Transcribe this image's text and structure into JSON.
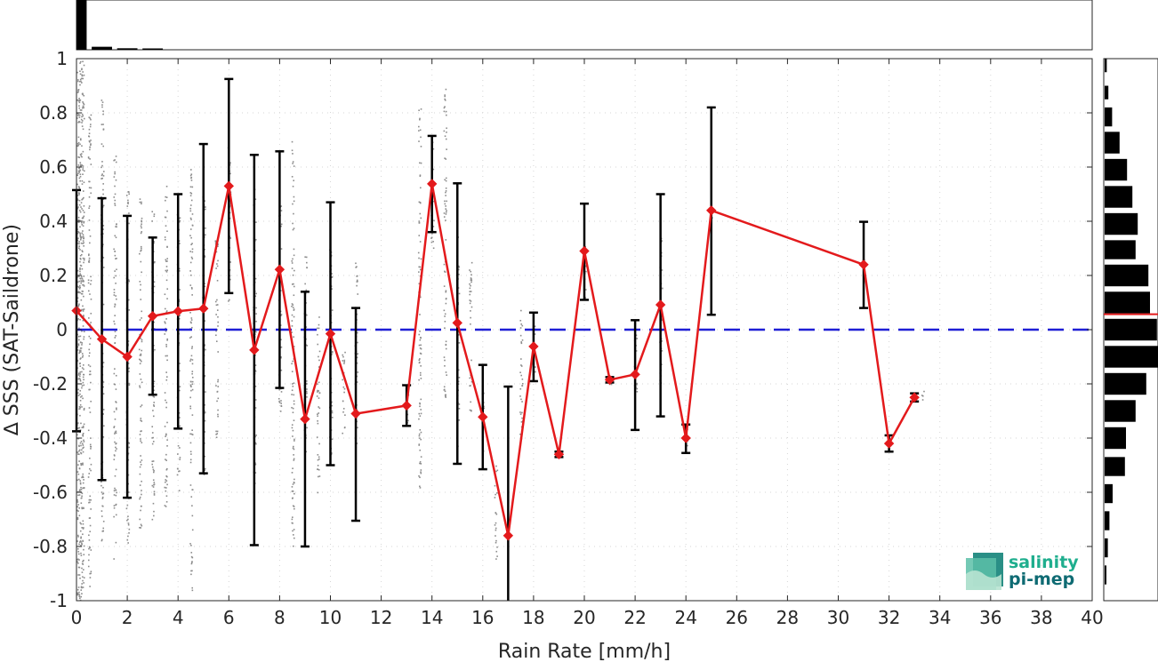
{
  "chart_data": {
    "type": "line",
    "xlabel": "Rain Rate [mm/h]",
    "ylabel": "∆ SSS (SAT-Saildrone)",
    "xlim": [
      0,
      40
    ],
    "ylim": [
      -1,
      1
    ],
    "x_ticks": [
      0,
      2,
      4,
      6,
      8,
      10,
      12,
      14,
      16,
      18,
      20,
      22,
      24,
      26,
      28,
      30,
      32,
      34,
      36,
      38,
      40
    ],
    "y_ticks": [
      1,
      0.8,
      0.6,
      0.4,
      0.2,
      0,
      -0.2,
      -0.4,
      -0.6,
      -0.8,
      -1
    ],
    "y_tick_labels": [
      "1",
      "0.8",
      "0.6",
      "0.4",
      "0.2",
      "0",
      "-0.2",
      "-0.4",
      "-0.6",
      "-0.8",
      "-1"
    ],
    "grid": true,
    "reference_line": {
      "y": 0,
      "color": "#1f1fd6",
      "style": "dashed"
    },
    "series": [
      {
        "color": "#e31a1c",
        "marker": "diamond",
        "points": [
          {
            "x": 0,
            "y": 0.07,
            "err_low": -0.375,
            "err_high": 0.515
          },
          {
            "x": 1,
            "y": -0.035,
            "err_low": -0.555,
            "err_high": 0.485
          },
          {
            "x": 2,
            "y": -0.1,
            "err_low": -0.62,
            "err_high": 0.42
          },
          {
            "x": 3,
            "y": 0.05,
            "err_low": -0.24,
            "err_high": 0.34
          },
          {
            "x": 4,
            "y": 0.068,
            "err_low": -0.365,
            "err_high": 0.5
          },
          {
            "x": 5,
            "y": 0.078,
            "err_low": -0.53,
            "err_high": 0.685
          },
          {
            "x": 6,
            "y": 0.53,
            "err_low": 0.135,
            "err_high": 0.925
          },
          {
            "x": 7,
            "y": -0.075,
            "err_low": -0.795,
            "err_high": 0.645
          },
          {
            "x": 8,
            "y": 0.222,
            "err_low": -0.215,
            "err_high": 0.658
          },
          {
            "x": 9,
            "y": -0.33,
            "err_low": -0.8,
            "err_high": 0.14
          },
          {
            "x": 10,
            "y": -0.015,
            "err_low": -0.5,
            "err_high": 0.47
          },
          {
            "x": 11,
            "y": -0.31,
            "err_low": -0.705,
            "err_high": 0.08
          },
          {
            "x": 13,
            "y": -0.28,
            "err_low": -0.355,
            "err_high": -0.205
          },
          {
            "x": 14,
            "y": 0.538,
            "err_low": 0.36,
            "err_high": 0.715
          },
          {
            "x": 15,
            "y": 0.025,
            "err_low": -0.495,
            "err_high": 0.54
          },
          {
            "x": 16,
            "y": -0.322,
            "err_low": -0.515,
            "err_high": -0.13
          },
          {
            "x": 17,
            "y": -0.76,
            "err_low": -1.0,
            "err_high": -0.21
          },
          {
            "x": 18,
            "y": -0.062,
            "err_low": -0.19,
            "err_high": 0.063
          },
          {
            "x": 19,
            "y": -0.46,
            "err_low": -0.47,
            "err_high": -0.45
          },
          {
            "x": 20,
            "y": 0.29,
            "err_low": 0.11,
            "err_high": 0.465
          },
          {
            "x": 21,
            "y": -0.185,
            "err_low": -0.195,
            "err_high": -0.175
          },
          {
            "x": 22,
            "y": -0.165,
            "err_low": -0.37,
            "err_high": 0.035
          },
          {
            "x": 23,
            "y": 0.092,
            "err_low": -0.32,
            "err_high": 0.5
          },
          {
            "x": 24,
            "y": -0.4,
            "err_low": -0.455,
            "err_high": -0.35
          },
          {
            "x": 25,
            "y": 0.44,
            "err_low": 0.055,
            "err_high": 0.82
          },
          {
            "x": 31,
            "y": 0.24,
            "err_low": 0.08,
            "err_high": 0.398
          },
          {
            "x": 32,
            "y": -0.42,
            "err_low": -0.45,
            "err_high": -0.39
          },
          {
            "x": 33,
            "y": -0.25,
            "err_low": -0.265,
            "err_high": -0.235
          }
        ]
      }
    ],
    "scatter_cloud": {
      "color": "#8c8c8c",
      "columns": [
        {
          "x": 0,
          "ymin": -1,
          "ymax": 1
        },
        {
          "x": 0.5,
          "ymin": -0.95,
          "ymax": 0.85
        },
        {
          "x": 1,
          "ymin": -0.8,
          "ymax": 0.85
        },
        {
          "x": 1.5,
          "ymin": -0.85,
          "ymax": 0.65
        },
        {
          "x": 2,
          "ymin": -0.8,
          "ymax": 0.55
        },
        {
          "x": 2.5,
          "ymin": -0.75,
          "ymax": 0.5
        },
        {
          "x": 3,
          "ymin": -0.7,
          "ymax": 0.45
        },
        {
          "x": 3.5,
          "ymin": -0.65,
          "ymax": 0.55
        },
        {
          "x": 4,
          "ymin": -0.6,
          "ymax": 0.45
        },
        {
          "x": 4.5,
          "ymin": -1,
          "ymax": 0.6
        },
        {
          "x": 5,
          "ymin": -0.55,
          "ymax": 0.5
        },
        {
          "x": 5.5,
          "ymin": -0.4,
          "ymax": 0.35
        },
        {
          "x": 6,
          "ymin": 0.1,
          "ymax": 0.7
        },
        {
          "x": 7,
          "ymin": -0.6,
          "ymax": 0.55
        },
        {
          "x": 8,
          "ymin": -0.3,
          "ymax": 0.5
        },
        {
          "x": 8.5,
          "ymin": -0.85,
          "ymax": 0.7
        },
        {
          "x": 9,
          "ymin": -0.45,
          "ymax": 0.3
        },
        {
          "x": 9.5,
          "ymin": -0.6,
          "ymax": 0.05
        },
        {
          "x": 10,
          "ymin": -0.5,
          "ymax": 0.3
        },
        {
          "x": 10.5,
          "ymin": -0.4,
          "ymax": -0.05
        },
        {
          "x": 11,
          "ymin": -0.45,
          "ymax": 0.25
        },
        {
          "x": 13,
          "ymin": -0.35,
          "ymax": -0.2
        },
        {
          "x": 13.5,
          "ymin": -0.6,
          "ymax": 0.85
        },
        {
          "x": 14,
          "ymin": 0.3,
          "ymax": 0.7
        },
        {
          "x": 14.5,
          "ymin": -0.25,
          "ymax": 0.9
        },
        {
          "x": 15,
          "ymin": -0.45,
          "ymax": 0.35
        },
        {
          "x": 15.5,
          "ymin": -0.3,
          "ymax": 0.25
        },
        {
          "x": 16,
          "ymin": -0.45,
          "ymax": -0.2
        },
        {
          "x": 16.5,
          "ymin": -0.85,
          "ymax": -0.5
        },
        {
          "x": 17.5,
          "ymin": -0.4,
          "ymax": 0.1
        },
        {
          "x": 18,
          "ymin": -0.2,
          "ymax": 0.05
        },
        {
          "x": 19,
          "ymin": -0.47,
          "ymax": -0.45
        },
        {
          "x": 20,
          "ymin": 0.1,
          "ymax": 0.35
        },
        {
          "x": 21,
          "ymin": -0.2,
          "ymax": -0.17
        },
        {
          "x": 22,
          "ymin": -0.3,
          "ymax": 0.0
        },
        {
          "x": 23,
          "ymin": -0.2,
          "ymax": 0.35
        },
        {
          "x": 24,
          "ymin": -0.45,
          "ymax": -0.35
        },
        {
          "x": 25,
          "ymin": 0.4,
          "ymax": 0.45
        },
        {
          "x": 31,
          "ymin": 0.22,
          "ymax": 0.26
        },
        {
          "x": 32,
          "ymin": -0.44,
          "ymax": -0.4
        },
        {
          "x": 33,
          "ymin": -0.26,
          "ymax": -0.24
        },
        {
          "x": 33.3,
          "ymin": -0.26,
          "ymax": -0.22
        }
      ]
    },
    "top_histogram": {
      "color": "#000000",
      "bins": [
        {
          "x0": 0,
          "x1": 0.4,
          "value": 1
        },
        {
          "x0": 0.6,
          "x1": 1.4,
          "value": 0.06
        },
        {
          "x0": 1.6,
          "x1": 2.4,
          "value": 0.03
        },
        {
          "x0": 2.6,
          "x1": 3.4,
          "value": 0.01
        }
      ]
    },
    "right_histogram": {
      "color": "#000000",
      "mean_line": {
        "y": 0.057,
        "color": "#e31a1c"
      },
      "bins": [
        {
          "y0": 0.95,
          "y1": 1.0,
          "value": 0.04
        },
        {
          "y0": 0.85,
          "y1": 0.9,
          "value": 0.07
        },
        {
          "y0": 0.75,
          "y1": 0.82,
          "value": 0.14
        },
        {
          "y0": 0.65,
          "y1": 0.73,
          "value": 0.28
        },
        {
          "y0": 0.55,
          "y1": 0.63,
          "value": 0.42
        },
        {
          "y0": 0.45,
          "y1": 0.53,
          "value": 0.52
        },
        {
          "y0": 0.35,
          "y1": 0.43,
          "value": 0.62
        },
        {
          "y0": 0.26,
          "y1": 0.33,
          "value": 0.58
        },
        {
          "y0": 0.16,
          "y1": 0.24,
          "value": 0.82
        },
        {
          "y0": 0.06,
          "y1": 0.14,
          "value": 0.85
        },
        {
          "y0": -0.04,
          "y1": 0.04,
          "value": 0.98
        },
        {
          "y0": -0.14,
          "y1": -0.06,
          "value": 1.0
        },
        {
          "y0": -0.24,
          "y1": -0.16,
          "value": 0.78
        },
        {
          "y0": -0.34,
          "y1": -0.26,
          "value": 0.58
        },
        {
          "y0": -0.44,
          "y1": -0.36,
          "value": 0.4
        },
        {
          "y0": -0.54,
          "y1": -0.47,
          "value": 0.38
        },
        {
          "y0": -0.64,
          "y1": -0.57,
          "value": 0.15
        },
        {
          "y0": -0.74,
          "y1": -0.67,
          "value": 0.09
        },
        {
          "y0": -0.84,
          "y1": -0.77,
          "value": 0.06
        },
        {
          "y0": -0.94,
          "y1": -0.87,
          "value": 0.03
        }
      ]
    }
  },
  "logo": {
    "line1": "salinity",
    "line2": "pi-mep",
    "color1": "#1fae8e",
    "color2": "#0f6b73"
  }
}
